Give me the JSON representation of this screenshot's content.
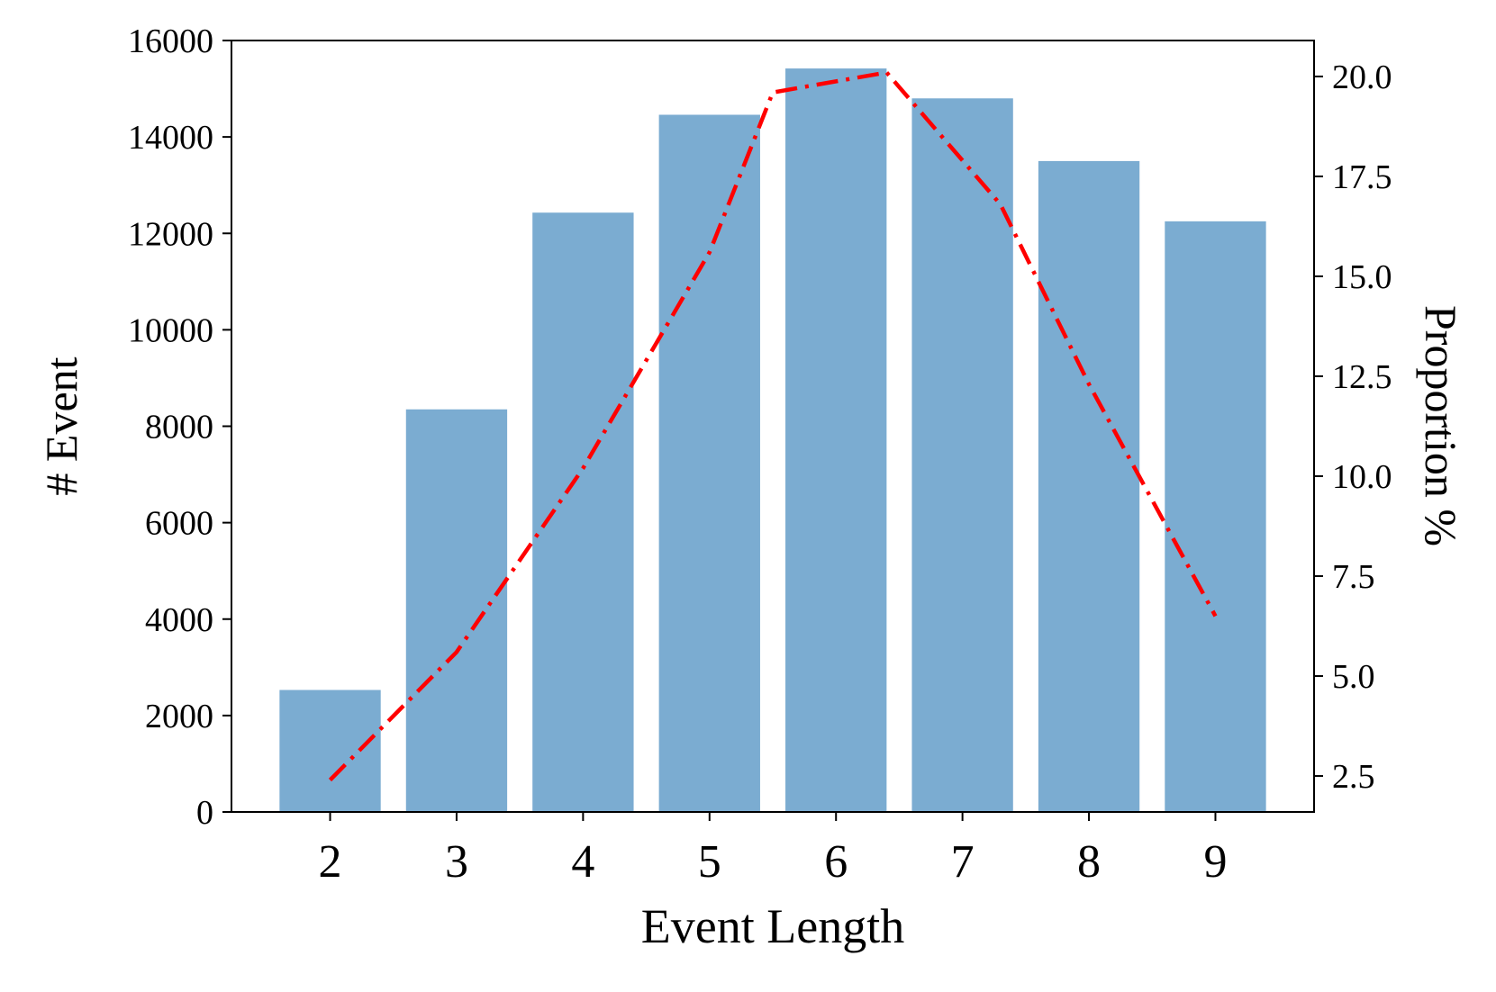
{
  "chart_data": {
    "type": "bar",
    "xlabel": "Event Length",
    "ylabel": "# Event",
    "y2label": "Proportion %",
    "categories": [
      "2",
      "3",
      "4",
      "5",
      "6",
      "7",
      "8",
      "9"
    ],
    "x": [
      2,
      3,
      4,
      5,
      6,
      7,
      8,
      9
    ],
    "xlim": [
      1.22,
      9.78
    ],
    "ylim": [
      0,
      16000
    ],
    "y2lim": [
      1.6,
      20.9
    ],
    "yticks": [
      0,
      2000,
      4000,
      6000,
      8000,
      10000,
      12000,
      14000,
      16000
    ],
    "y2ticks": [
      "2.5",
      "5.0",
      "7.5",
      "10.0",
      "12.5",
      "15.0",
      "17.5",
      "20.0"
    ],
    "y2tick_values": [
      2.5,
      5.0,
      7.5,
      10.0,
      12.5,
      15.0,
      17.5,
      20.0
    ],
    "grid": false,
    "series": [
      {
        "type": "bar",
        "axis": "left",
        "values": [
          2530,
          8350,
          12430,
          14460,
          15420,
          14800,
          13500,
          12250
        ],
        "color": "#7bacd1"
      },
      {
        "type": "line",
        "axis": "right",
        "style": "dash-dot",
        "x": [
          2,
          3,
          4,
          5,
          5.5,
          6.4,
          7.3,
          8,
          9
        ],
        "values": [
          2.4,
          5.6,
          10.2,
          15.6,
          19.6,
          20.1,
          16.8,
          12.3,
          6.5
        ],
        "color": "#ff0000"
      }
    ]
  }
}
